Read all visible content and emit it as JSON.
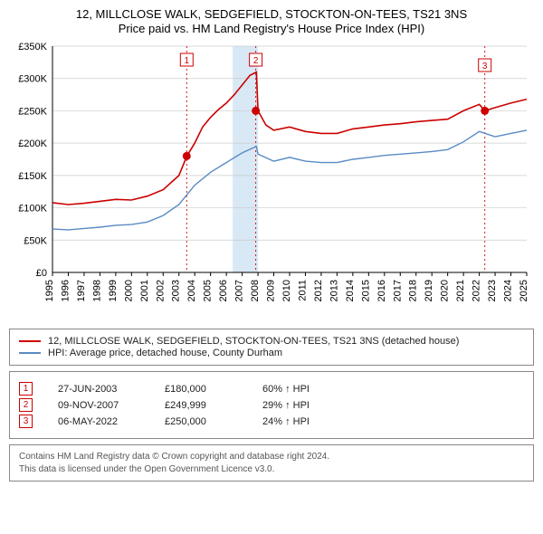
{
  "title_line1": "12, MILLCLOSE WALK, SEDGEFIELD, STOCKTON-ON-TEES, TS21 3NS",
  "title_line2": "Price paid vs. HM Land Registry's House Price Index (HPI)",
  "chart": {
    "type": "line",
    "background_color": "#ffffff",
    "grid_color": "#cccccc",
    "axis_color": "#000000",
    "tick_fontsize": 11,
    "x_range": [
      1995,
      2025
    ],
    "x_ticks": [
      1995,
      1996,
      1997,
      1998,
      1999,
      2000,
      2001,
      2002,
      2003,
      2004,
      2005,
      2006,
      2007,
      2008,
      2009,
      2010,
      2011,
      2012,
      2013,
      2014,
      2015,
      2016,
      2017,
      2018,
      2019,
      2020,
      2021,
      2022,
      2023,
      2024,
      2025
    ],
    "y_range": [
      0,
      350000
    ],
    "y_ticks": [
      "£0",
      "£50K",
      "£100K",
      "£150K",
      "£200K",
      "£250K",
      "£300K",
      "£350K"
    ],
    "band": {
      "start": 2006.4,
      "end": 2008.0,
      "fill": "#d8e8f5"
    },
    "series": [
      {
        "name": "12, MILLCLOSE WALK, SEDGEFIELD, STOCKTON-ON-TEES, TS21 3NS (detached house)",
        "color": "#cc0000",
        "line_width": 1.6,
        "points": [
          [
            1995,
            108000
          ],
          [
            1996,
            105000
          ],
          [
            1997,
            107000
          ],
          [
            1998,
            110000
          ],
          [
            1999,
            113000
          ],
          [
            2000,
            112000
          ],
          [
            2001,
            118000
          ],
          [
            2002,
            128000
          ],
          [
            2003,
            150000
          ],
          [
            2003.5,
            180000
          ],
          [
            2004,
            200000
          ],
          [
            2004.5,
            225000
          ],
          [
            2005,
            240000
          ],
          [
            2005.5,
            252000
          ],
          [
            2006,
            262000
          ],
          [
            2006.5,
            275000
          ],
          [
            2007,
            290000
          ],
          [
            2007.5,
            305000
          ],
          [
            2007.9,
            310000
          ],
          [
            2008,
            250000
          ],
          [
            2008.5,
            228000
          ],
          [
            2009,
            220000
          ],
          [
            2010,
            225000
          ],
          [
            2011,
            218000
          ],
          [
            2012,
            215000
          ],
          [
            2013,
            215000
          ],
          [
            2014,
            222000
          ],
          [
            2015,
            225000
          ],
          [
            2016,
            228000
          ],
          [
            2017,
            230000
          ],
          [
            2018,
            233000
          ],
          [
            2019,
            235000
          ],
          [
            2020,
            237000
          ],
          [
            2021,
            250000
          ],
          [
            2022,
            260000
          ],
          [
            2022.35,
            250000
          ],
          [
            2023,
            255000
          ],
          [
            2024,
            262000
          ],
          [
            2025,
            268000
          ]
        ]
      },
      {
        "name": "HPI: Average price, detached house, County Durham",
        "color": "#5a8bc4",
        "line_width": 1.4,
        "points": [
          [
            1995,
            67000
          ],
          [
            1996,
            66000
          ],
          [
            1997,
            68000
          ],
          [
            1998,
            70000
          ],
          [
            1999,
            73000
          ],
          [
            2000,
            74000
          ],
          [
            2001,
            78000
          ],
          [
            2002,
            88000
          ],
          [
            2003,
            105000
          ],
          [
            2004,
            135000
          ],
          [
            2005,
            155000
          ],
          [
            2006,
            170000
          ],
          [
            2007,
            185000
          ],
          [
            2007.9,
            195000
          ],
          [
            2008,
            183000
          ],
          [
            2009,
            172000
          ],
          [
            2010,
            178000
          ],
          [
            2011,
            172000
          ],
          [
            2012,
            170000
          ],
          [
            2013,
            170000
          ],
          [
            2014,
            175000
          ],
          [
            2015,
            178000
          ],
          [
            2016,
            181000
          ],
          [
            2017,
            183000
          ],
          [
            2018,
            185000
          ],
          [
            2019,
            187000
          ],
          [
            2020,
            190000
          ],
          [
            2021,
            202000
          ],
          [
            2022,
            218000
          ],
          [
            2023,
            210000
          ],
          [
            2024,
            215000
          ],
          [
            2025,
            220000
          ]
        ]
      }
    ],
    "markers": [
      {
        "n": "1",
        "x": 2003.49,
        "y": 180000,
        "color": "#cc0000",
        "label_y": 88
      },
      {
        "n": "2",
        "x": 2007.86,
        "y": 249999,
        "color": "#cc0000",
        "label_y": 88
      },
      {
        "n": "3",
        "x": 2022.35,
        "y": 250000,
        "color": "#cc0000",
        "label_y": 94
      }
    ]
  },
  "legend": {
    "lines": [
      {
        "color": "#cc0000",
        "text": "12, MILLCLOSE WALK, SEDGEFIELD, STOCKTON-ON-TEES, TS21 3NS (detached house)"
      },
      {
        "color": "#5a8bc4",
        "text": "HPI: Average price, detached house, County Durham"
      }
    ]
  },
  "events": [
    {
      "n": "1",
      "date": "27-JUN-2003",
      "price": "£180,000",
      "pct": "60% ↑ HPI",
      "color": "#cc0000"
    },
    {
      "n": "2",
      "date": "09-NOV-2007",
      "price": "£249,999",
      "pct": "29% ↑ HPI",
      "color": "#cc0000"
    },
    {
      "n": "3",
      "date": "06-MAY-2022",
      "price": "£250,000",
      "pct": "24% ↑ HPI",
      "color": "#cc0000"
    }
  ],
  "attribution": {
    "line1": "Contains HM Land Registry data © Crown copyright and database right 2024.",
    "line2": "This data is licensed under the Open Government Licence v3.0."
  }
}
